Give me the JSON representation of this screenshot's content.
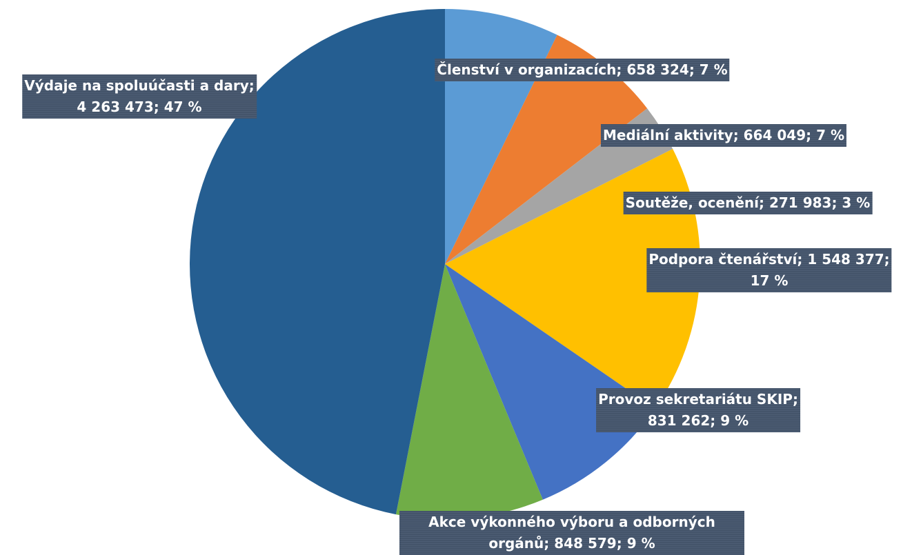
{
  "chart_data": {
    "type": "pie",
    "categories": [
      "Členství v organizacích",
      "Mediální aktivity",
      "Soutěže, ocenění",
      "Podpora čtenářství",
      "Provoz sekretariátu SKIP",
      "Akce výkonného výboru a odborných orgánů",
      "Výdaje na spoluúčasti a dary"
    ],
    "values": [
      658324,
      664049,
      271983,
      1548377,
      831262,
      848579,
      4263473
    ],
    "value_labels": [
      "658 324",
      "664 049",
      "271 983",
      "1 548 377",
      "831 262",
      "848 579",
      "4 263 473"
    ],
    "percents": [
      7,
      7,
      3,
      17,
      9,
      9,
      47
    ],
    "percent_labels": [
      "7 %",
      "7 %",
      "3 %",
      "17 %",
      "9 %",
      "9 %",
      "47 %"
    ],
    "separator": "; ",
    "colors": [
      "#5b9bd5",
      "#ed7d31",
      "#a5a5a5",
      "#ffc000",
      "#4472c4",
      "#70ad47",
      "#255e91"
    ]
  }
}
